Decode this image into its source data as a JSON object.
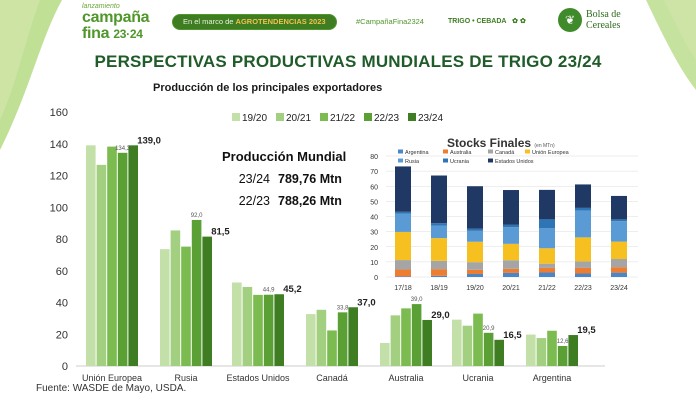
{
  "header": {
    "pre": "lanzamiento",
    "brand_line1": "campaña",
    "brand_line2": "fina",
    "brand_year": "23·24",
    "pill_prefix": "En el marco de",
    "pill_event": "AGROTENDENCIAS 2023",
    "hashtag": "#CampañaFina2324",
    "crops": "TRIGO • CEBADA",
    "org": "Bolsa de Cereales"
  },
  "title": "PERSPECTIVAS PRODUCTIVAS MUNDIALES DE TRIGO 23/24",
  "subtitle": "Producción de los principales exportadores",
  "production_box": {
    "heading": "Producción Mundial",
    "rows": [
      {
        "year": "23/24",
        "value": "789,76 Mtn"
      },
      {
        "year": "22/23",
        "value": "788,26 Mtn"
      }
    ]
  },
  "source": "Fuente: WASDE de Mayo, USDA.",
  "colors": {
    "series": [
      "#c3e0a9",
      "#a3d080",
      "#7cbb4f",
      "#5aa035",
      "#3e7d22"
    ],
    "stock_countries": [
      "#4a86c8",
      "#ed7d31",
      "#a5a5a5",
      "#f5c020",
      "#5b9bd5",
      "#2e75b6",
      "#203864"
    ],
    "title": "#1f5c2a"
  },
  "chart_data": [
    {
      "type": "bar",
      "categories": [
        "Unión Europea",
        "Rusia",
        "Estados Unidos",
        "Canadá",
        "Australia",
        "Ucrania",
        "Argentina"
      ],
      "series": [
        {
          "name": "19/20",
          "values": [
            139,
            73.6,
            52.6,
            32.7,
            14.5,
            29.2,
            19.8
          ]
        },
        {
          "name": "20/21",
          "values": [
            126.7,
            85.4,
            49.8,
            35.4,
            31.9,
            25.4,
            17.6
          ]
        },
        {
          "name": "21/22",
          "values": [
            138.2,
            75.2,
            44.8,
            22.4,
            36.3,
            33,
            22.2
          ]
        },
        {
          "name": "22/23",
          "values": [
            134.3,
            92,
            44.9,
            33.8,
            39,
            20.9,
            12.6
          ]
        },
        {
          "name": "23/24",
          "values": [
            139,
            81.5,
            45.2,
            37,
            29,
            16.5,
            19.5
          ]
        }
      ],
      "data_labels": [
        {
          "category": "Unión Europea",
          "series": "22/23",
          "text": "134,3"
        },
        {
          "category": "Unión Europea",
          "series": "23/24",
          "text": "139,0"
        },
        {
          "category": "Rusia",
          "series": "22/23",
          "text": "92,0"
        },
        {
          "category": "Rusia",
          "series": "23/24",
          "text": "81,5"
        },
        {
          "category": "Estados Unidos",
          "series": "22/23",
          "text": "44,9"
        },
        {
          "category": "Estados Unidos",
          "series": "23/24",
          "text": "45,2"
        },
        {
          "category": "Canadá",
          "series": "22/23",
          "text": "33,8"
        },
        {
          "category": "Canadá",
          "series": "23/24",
          "text": "37,0"
        },
        {
          "category": "Australia",
          "series": "22/23",
          "text": "39,0"
        },
        {
          "category": "Australia",
          "series": "23/24",
          "text": "29,0"
        },
        {
          "category": "Ucrania",
          "series": "22/23",
          "text": "20,9"
        },
        {
          "category": "Ucrania",
          "series": "23/24",
          "text": "16,5"
        },
        {
          "category": "Argentina",
          "series": "22/23",
          "text": "12,6"
        },
        {
          "category": "Argentina",
          "series": "23/24",
          "text": "19,5"
        }
      ],
      "yticks": [
        0,
        20,
        40,
        60,
        80,
        100,
        120,
        140,
        160
      ],
      "ylim": [
        0,
        160
      ],
      "legend": "top-center",
      "grid": false
    },
    {
      "type": "stacked-bar",
      "title": "Stocks Finales",
      "title_unit": "(en MTn)",
      "categories": [
        "17/18",
        "18/19",
        "19/20",
        "20/21",
        "21/22",
        "22/23",
        "23/24"
      ],
      "series": [
        {
          "name": "Argentina",
          "values": [
            0.4,
            0.8,
            2.0,
            2.7,
            3.0,
            2.3,
            2.9
          ]
        },
        {
          "name": "Australia",
          "values": [
            4.6,
            4.4,
            2.8,
            2.7,
            3.0,
            3.7,
            3.6
          ]
        },
        {
          "name": "Canadá",
          "values": [
            6.2,
            5.5,
            5.0,
            5.7,
            2.8,
            4.3,
            5.4
          ]
        },
        {
          "name": "Unión Europea",
          "values": [
            18.6,
            15.0,
            13.5,
            10.8,
            10.2,
            15.9,
            11.5
          ]
        },
        {
          "name": "Rusia",
          "values": [
            12.0,
            8.3,
            7.2,
            11.1,
            13.2,
            17.8,
            13.5
          ]
        },
        {
          "name": "Ucrania",
          "values": [
            1.3,
            1.6,
            1.5,
            1.5,
            5.9,
            1.7,
            1.2
          ]
        },
        {
          "name": "Estados Unidos",
          "values": [
            30.0,
            31.5,
            28.0,
            23.0,
            19.5,
            15.5,
            15.5
          ]
        }
      ],
      "yticks": [
        0,
        10,
        20,
        30,
        40,
        50,
        60,
        70,
        80
      ],
      "ylim": [
        0,
        80
      ],
      "grid": true,
      "legend": "top"
    }
  ]
}
